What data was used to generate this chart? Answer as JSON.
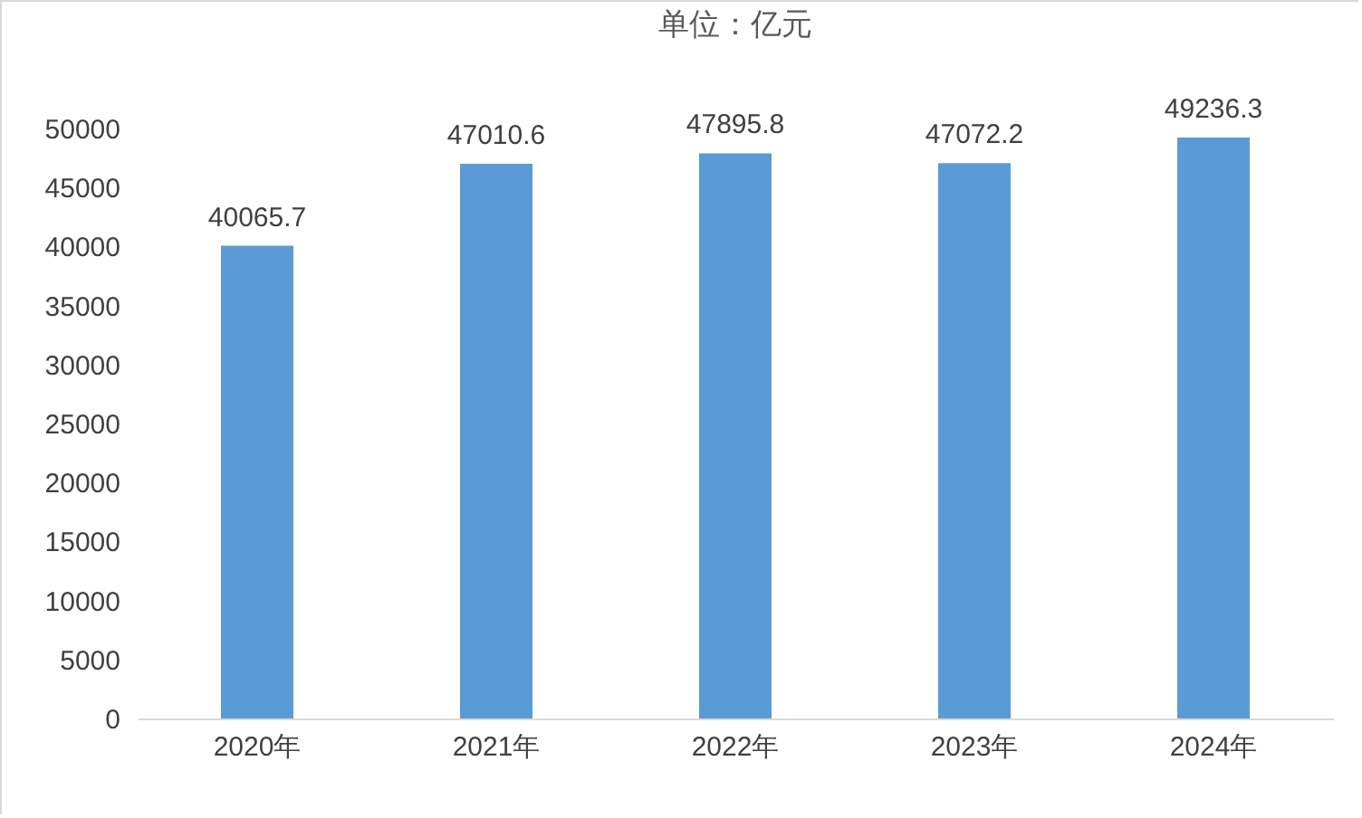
{
  "chart_data": {
    "type": "bar",
    "title": "单位：亿元",
    "categories": [
      "2020年",
      "2021年",
      "2022年",
      "2023年",
      "2024年"
    ],
    "values": [
      40065.7,
      47010.6,
      47895.8,
      47072.2,
      49236.3
    ],
    "color": "#5b9bd5",
    "ylim": [
      0,
      50000
    ],
    "yticks": [
      0,
      5000,
      10000,
      15000,
      20000,
      25000,
      30000,
      35000,
      40000,
      45000,
      50000
    ],
    "data_labels": true
  }
}
